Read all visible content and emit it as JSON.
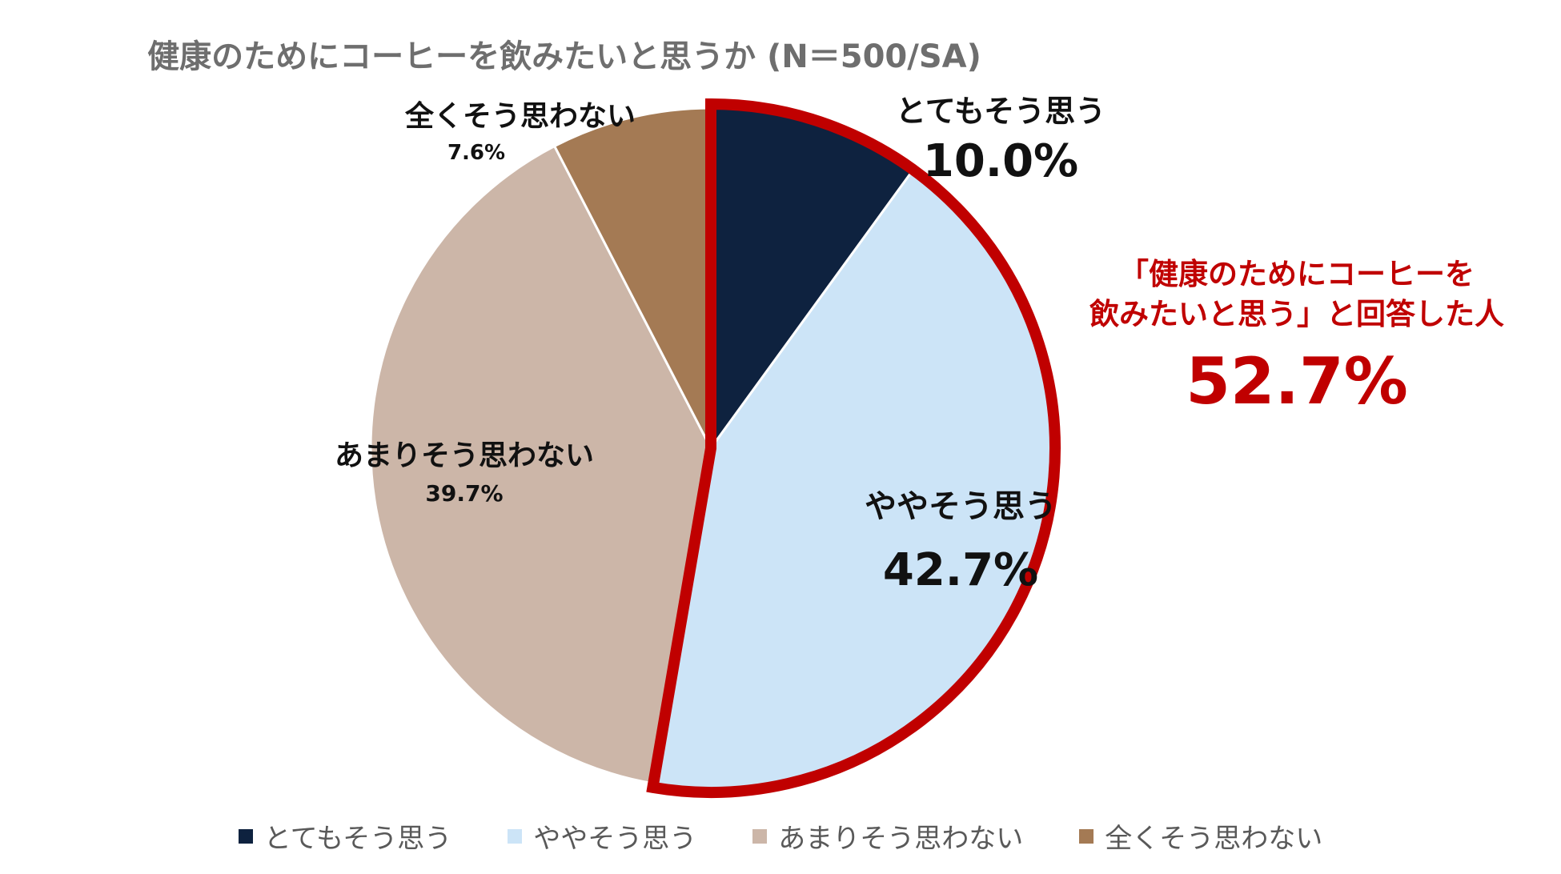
{
  "chart_data": {
    "type": "pie",
    "title": "健康のためにコーヒーを飲みたいと思うか (N＝500/SA)",
    "categories": [
      "とてもそう思う",
      "ややそう思う",
      "あまりそう思わない",
      "全くそう思わない"
    ],
    "values": [
      10.0,
      42.7,
      39.7,
      7.6
    ],
    "value_labels": [
      "10.0%",
      "42.7%",
      "39.7%",
      "7.6%"
    ],
    "colors": [
      "#0e223f",
      "#cce4f7",
      "#ccb6a8",
      "#a47a54"
    ],
    "highlight": {
      "categories": [
        "とてもそう思う",
        "ややそう思う"
      ],
      "outline_color": "#c00000",
      "label_lines": [
        "「健康のためにコーヒーを",
        "飲みたいと思う」と回答した人"
      ],
      "value": 52.7,
      "value_label": "52.7%"
    },
    "legend": {
      "placement": "bottom",
      "entries": [
        "とてもそう思う",
        "ややそう思う",
        "あまりそう思わない",
        "全くそう思わない"
      ]
    }
  }
}
